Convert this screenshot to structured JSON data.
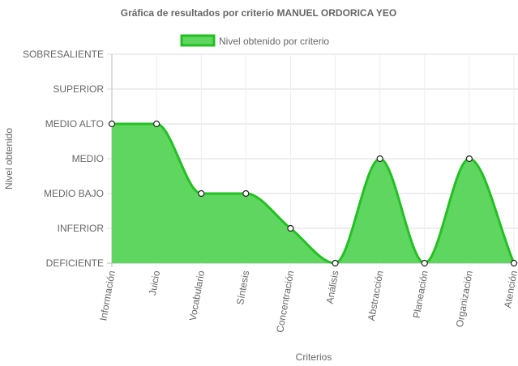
{
  "chart_data": {
    "type": "area",
    "title": "Gráfica de resultados por criterio MANUEL ORDORICA YEO",
    "xlabel": "Criterios",
    "ylabel": "Nivel obtenido",
    "y_levels": [
      "DEFICIENTE",
      "INFERIOR",
      "MEDIO BAJO",
      "MEDIO",
      "MEDIO ALTO",
      "SUPERIOR",
      "SOBRESALIENTE"
    ],
    "categories": [
      "Información",
      "Juicio",
      "Vocabulario",
      "Síntesis",
      "Concentración",
      "Análisis",
      "Abstracción",
      "Planeación",
      "Organización",
      "Atención"
    ],
    "series": [
      {
        "name": "Nivel obtenido por criterio",
        "values": [
          "MEDIO ALTO",
          "MEDIO ALTO",
          "MEDIO BAJO",
          "MEDIO BAJO",
          "INFERIOR",
          "DEFICIENTE",
          "MEDIO",
          "DEFICIENTE",
          "MEDIO",
          "DEFICIENTE"
        ]
      }
    ],
    "legend": "top-center",
    "grid": true,
    "colors": {
      "fill": "#5fd65f",
      "stroke": "#22c022",
      "point_fill": "#ffffff",
      "point_stroke": "#222222"
    }
  }
}
